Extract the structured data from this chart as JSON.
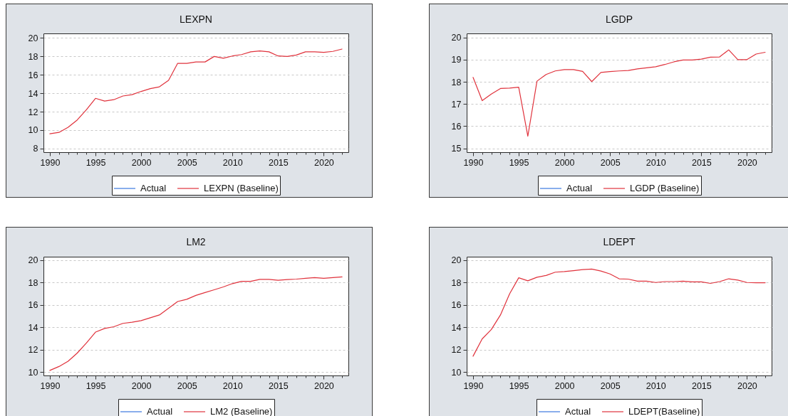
{
  "chart_data": [
    {
      "type": "line",
      "title": "LEXPN",
      "x": [
        1990,
        1991,
        1992,
        1993,
        1994,
        1995,
        1996,
        1997,
        1998,
        1999,
        2000,
        2001,
        2002,
        2003,
        2004,
        2005,
        2006,
        2007,
        2008,
        2009,
        2010,
        2011,
        2012,
        2013,
        2014,
        2015,
        2016,
        2017,
        2018,
        2019,
        2020,
        2021,
        2022
      ],
      "series": [
        {
          "name": "Actual",
          "color": "#3b78e0",
          "values": [
            null,
            null,
            null,
            null,
            null,
            null,
            null,
            null,
            null,
            null,
            null,
            null,
            null,
            null,
            null,
            null,
            null,
            null,
            null,
            null,
            null,
            null,
            null,
            null,
            null,
            null,
            null,
            null,
            null,
            null,
            null,
            null,
            null
          ]
        },
        {
          "name": "LEXPN (Baseline)",
          "color": "#e0323c",
          "values": [
            9.6,
            9.75,
            10.3,
            11.1,
            12.2,
            13.45,
            13.15,
            13.3,
            13.7,
            13.85,
            14.2,
            14.5,
            14.7,
            15.4,
            17.25,
            17.25,
            17.4,
            17.4,
            18.0,
            17.8,
            18.05,
            18.2,
            18.5,
            18.6,
            18.5,
            18.05,
            18.0,
            18.15,
            18.5,
            18.5,
            18.45,
            18.55,
            18.8
          ]
        }
      ],
      "xlim": [
        1989.3,
        2022.7
      ],
      "ylim": [
        7.6,
        20.5
      ],
      "xticks": [
        1990,
        {
          "value": 1991,
          "label": null
        },
        {
          "value": 1992,
          "label": null
        },
        {
          "value": 1993,
          "label": null
        },
        {
          "value": 1994,
          "label": null
        },
        1995,
        {
          "value": 1996,
          "label": null
        },
        {
          "value": 1997,
          "label": null
        },
        {
          "value": 1998,
          "label": null
        },
        {
          "value": 1999,
          "label": null
        },
        2000,
        {
          "value": 2001,
          "label": null
        },
        {
          "value": 2002,
          "label": null
        },
        {
          "value": 2003,
          "label": null
        },
        {
          "value": 2004,
          "label": null
        },
        2005,
        {
          "value": 2006,
          "label": null
        },
        {
          "value": 2007,
          "label": null
        },
        {
          "value": 2008,
          "label": null
        },
        {
          "value": 2009,
          "label": null
        },
        2010,
        {
          "value": 2011,
          "label": null
        },
        {
          "value": 2012,
          "label": null
        },
        {
          "value": 2013,
          "label": null
        },
        {
          "value": 2014,
          "label": null
        },
        2015,
        {
          "value": 2016,
          "label": null
        },
        {
          "value": 2017,
          "label": null
        },
        {
          "value": 2018,
          "label": null
        },
        {
          "value": 2019,
          "label": null
        },
        2020,
        {
          "value": 2021,
          "label": null
        },
        {
          "value": 2022,
          "label": null
        }
      ],
      "yticks": [
        8,
        10,
        12,
        14,
        16,
        18,
        20
      ],
      "grid": "y",
      "legend": "bottom"
    },
    {
      "type": "line",
      "title": "LGDP",
      "x": [
        1990,
        1991,
        1992,
        1993,
        1994,
        1995,
        1996,
        1997,
        1998,
        1999,
        2000,
        2001,
        2002,
        2003,
        2004,
        2005,
        2006,
        2007,
        2008,
        2009,
        2010,
        2011,
        2012,
        2013,
        2014,
        2015,
        2016,
        2017,
        2018,
        2019,
        2020,
        2021,
        2022
      ],
      "series": [
        {
          "name": "Actual",
          "color": "#3b78e0",
          "values": [
            null,
            null,
            null,
            null,
            null,
            null,
            null,
            null,
            null,
            null,
            null,
            null,
            null,
            null,
            null,
            null,
            null,
            null,
            null,
            null,
            null,
            null,
            null,
            null,
            null,
            null,
            null,
            null,
            null,
            null,
            null,
            null,
            null
          ]
        },
        {
          "name": "LGDP (Baseline)",
          "color": "#e0323c",
          "values": [
            18.2,
            17.15,
            17.45,
            17.7,
            17.72,
            17.76,
            15.55,
            18.03,
            18.33,
            18.49,
            18.55,
            18.55,
            18.47,
            18.01,
            18.42,
            18.46,
            18.49,
            18.51,
            18.58,
            18.63,
            18.68,
            18.78,
            18.9,
            18.98,
            18.98,
            19.02,
            19.11,
            19.12,
            19.44,
            19.0,
            19.0,
            19.25,
            19.33
          ]
        }
      ],
      "xlim": [
        1989.3,
        2022.7
      ],
      "ylim": [
        14.83,
        20.18
      ],
      "xticks": [
        1990,
        {
          "value": 1991,
          "label": null
        },
        {
          "value": 1992,
          "label": null
        },
        {
          "value": 1993,
          "label": null
        },
        {
          "value": 1994,
          "label": null
        },
        1995,
        {
          "value": 1996,
          "label": null
        },
        {
          "value": 1997,
          "label": null
        },
        {
          "value": 1998,
          "label": null
        },
        {
          "value": 1999,
          "label": null
        },
        2000,
        {
          "value": 2001,
          "label": null
        },
        {
          "value": 2002,
          "label": null
        },
        {
          "value": 2003,
          "label": null
        },
        {
          "value": 2004,
          "label": null
        },
        2005,
        {
          "value": 2006,
          "label": null
        },
        {
          "value": 2007,
          "label": null
        },
        {
          "value": 2008,
          "label": null
        },
        {
          "value": 2009,
          "label": null
        },
        2010,
        {
          "value": 2011,
          "label": null
        },
        {
          "value": 2012,
          "label": null
        },
        {
          "value": 2013,
          "label": null
        },
        {
          "value": 2014,
          "label": null
        },
        2015,
        {
          "value": 2016,
          "label": null
        },
        {
          "value": 2017,
          "label": null
        },
        {
          "value": 2018,
          "label": null
        },
        {
          "value": 2019,
          "label": null
        },
        2020,
        {
          "value": 2021,
          "label": null
        },
        {
          "value": 2022,
          "label": null
        }
      ],
      "yticks": [
        15,
        16,
        17,
        18,
        19,
        20
      ],
      "grid": "y",
      "legend": "bottom"
    },
    {
      "type": "line",
      "title": "LM2",
      "x": [
        1990,
        1991,
        1992,
        1993,
        1994,
        1995,
        1996,
        1997,
        1998,
        1999,
        2000,
        2001,
        2002,
        2003,
        2004,
        2005,
        2006,
        2007,
        2008,
        2009,
        2010,
        2011,
        2012,
        2013,
        2014,
        2015,
        2016,
        2017,
        2018,
        2019,
        2020,
        2021,
        2022
      ],
      "series": [
        {
          "name": "Actual",
          "color": "#3b78e0",
          "values": [
            null,
            null,
            null,
            null,
            null,
            null,
            null,
            null,
            null,
            null,
            null,
            null,
            null,
            null,
            null,
            null,
            null,
            null,
            null,
            null,
            null,
            null,
            null,
            null,
            null,
            null,
            null,
            null,
            null,
            null,
            null,
            null,
            null
          ]
        },
        {
          "name": "LM2 (Baseline)",
          "color": "#e0323c",
          "values": [
            10.15,
            10.5,
            10.97,
            11.7,
            12.6,
            13.57,
            13.9,
            14.05,
            14.35,
            14.45,
            14.6,
            14.85,
            15.1,
            15.7,
            16.3,
            16.5,
            16.85,
            17.1,
            17.35,
            17.6,
            17.9,
            18.1,
            18.1,
            18.28,
            18.28,
            18.2,
            18.26,
            18.3,
            18.37,
            18.44,
            18.37,
            18.44,
            18.5
          ]
        }
      ],
      "xlim": [
        1989.3,
        2022.7
      ],
      "ylim": [
        9.7,
        20.3
      ],
      "xticks": [
        1990,
        {
          "value": 1991,
          "label": null
        },
        {
          "value": 1992,
          "label": null
        },
        {
          "value": 1993,
          "label": null
        },
        {
          "value": 1994,
          "label": null
        },
        1995,
        {
          "value": 1996,
          "label": null
        },
        {
          "value": 1997,
          "label": null
        },
        {
          "value": 1998,
          "label": null
        },
        {
          "value": 1999,
          "label": null
        },
        2000,
        {
          "value": 2001,
          "label": null
        },
        {
          "value": 2002,
          "label": null
        },
        {
          "value": 2003,
          "label": null
        },
        {
          "value": 2004,
          "label": null
        },
        2005,
        {
          "value": 2006,
          "label": null
        },
        {
          "value": 2007,
          "label": null
        },
        {
          "value": 2008,
          "label": null
        },
        {
          "value": 2009,
          "label": null
        },
        2010,
        {
          "value": 2011,
          "label": null
        },
        {
          "value": 2012,
          "label": null
        },
        {
          "value": 2013,
          "label": null
        },
        {
          "value": 2014,
          "label": null
        },
        2015,
        {
          "value": 2016,
          "label": null
        },
        {
          "value": 2017,
          "label": null
        },
        {
          "value": 2018,
          "label": null
        },
        {
          "value": 2019,
          "label": null
        },
        2020,
        {
          "value": 2021,
          "label": null
        },
        {
          "value": 2022,
          "label": null
        }
      ],
      "yticks": [
        10,
        12,
        14,
        16,
        18,
        20
      ],
      "grid": "y",
      "legend": "bottom"
    },
    {
      "type": "line",
      "title": "LDEPT",
      "x": [
        1990,
        1991,
        1992,
        1993,
        1994,
        1995,
        1996,
        1997,
        1998,
        1999,
        2000,
        2001,
        2002,
        2003,
        2004,
        2005,
        2006,
        2007,
        2008,
        2009,
        2010,
        2011,
        2012,
        2013,
        2014,
        2015,
        2016,
        2017,
        2018,
        2019,
        2020,
        2021,
        2022
      ],
      "series": [
        {
          "name": "Actual",
          "color": "#3b78e0",
          "values": [
            null,
            null,
            null,
            null,
            null,
            null,
            null,
            null,
            null,
            null,
            null,
            null,
            null,
            null,
            null,
            null,
            null,
            null,
            null,
            null,
            null,
            null,
            null,
            null,
            null,
            null,
            null,
            null,
            null,
            null,
            null,
            null,
            null
          ]
        },
        {
          "name": "LDEPT(Baseline)",
          "color": "#e0323c",
          "values": [
            11.42,
            12.97,
            13.8,
            15.1,
            16.98,
            18.42,
            18.15,
            18.47,
            18.63,
            18.92,
            18.97,
            19.06,
            19.15,
            19.2,
            19.02,
            18.76,
            18.33,
            18.3,
            18.12,
            18.12,
            18.0,
            18.08,
            18.08,
            18.12,
            18.05,
            18.05,
            17.92,
            18.08,
            18.33,
            18.21,
            18.0,
            17.98,
            17.98
          ]
        }
      ],
      "xlim": [
        1989.3,
        2022.7
      ],
      "ylim": [
        9.7,
        20.3
      ],
      "xticks": [
        1990,
        {
          "value": 1991,
          "label": null
        },
        {
          "value": 1992,
          "label": null
        },
        {
          "value": 1993,
          "label": null
        },
        {
          "value": 1994,
          "label": null
        },
        1995,
        {
          "value": 1996,
          "label": null
        },
        {
          "value": 1997,
          "label": null
        },
        {
          "value": 1998,
          "label": null
        },
        {
          "value": 1999,
          "label": null
        },
        2000,
        {
          "value": 2001,
          "label": null
        },
        {
          "value": 2002,
          "label": null
        },
        {
          "value": 2003,
          "label": null
        },
        {
          "value": 2004,
          "label": null
        },
        2005,
        {
          "value": 2006,
          "label": null
        },
        {
          "value": 2007,
          "label": null
        },
        {
          "value": 2008,
          "label": null
        },
        {
          "value": 2009,
          "label": null
        },
        2010,
        {
          "value": 2011,
          "label": null
        },
        {
          "value": 2012,
          "label": null
        },
        {
          "value": 2013,
          "label": null
        },
        {
          "value": 2014,
          "label": null
        },
        2015,
        {
          "value": 2016,
          "label": null
        },
        {
          "value": 2017,
          "label": null
        },
        {
          "value": 2018,
          "label": null
        },
        {
          "value": 2019,
          "label": null
        },
        2020,
        {
          "value": 2021,
          "label": null
        },
        {
          "value": 2022,
          "label": null
        }
      ],
      "yticks": [
        10,
        12,
        14,
        16,
        18,
        20
      ],
      "grid": "y",
      "legend": "bottom"
    }
  ]
}
